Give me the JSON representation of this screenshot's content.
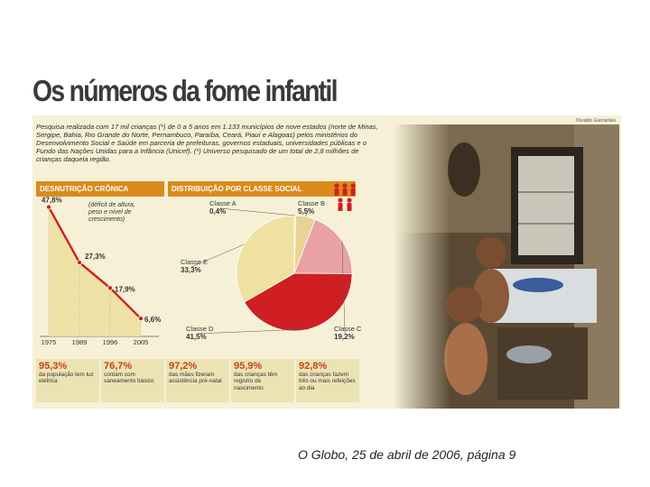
{
  "headline": "Os números da fome infantil",
  "credit": "Osvaldo Guimarães",
  "intro": "Pesquisa realizada com 17 mil crianças (*) de 0 a 5 anos em 1.133 municípios de nove estados (norte de Minas, Sergipe, Bahia, Rio Grande do Norte, Pernambuco, Paraíba, Ceará, Piauí e Alagoas) pelos ministérios do Desenvolvimento Social e Saúde em parceria de prefeituras, governos estaduais, universidades públicas e o Fundo das Nações Unidas para a Infância (Unicef). (*) Universo pesquisado de um total de 2,8 milhões de crianças daquela região.",
  "colors": {
    "orange": "#d98b1b",
    "red": "#cf1f22",
    "pink": "#e8a2a4",
    "cream": "#f0e1a0",
    "background": "#f6f1d6"
  },
  "chart_data": [
    {
      "type": "line",
      "title": "DESNUTRIÇÃO CRÔNICA",
      "annotation": "(déficit de altura, peso e nível de crescimento)",
      "x": [
        "1975",
        "1989",
        "1996",
        "2005"
      ],
      "y": [
        47.8,
        27.3,
        17.9,
        6.6
      ],
      "data_labels": [
        "47,8%",
        "27,3%",
        "17,9%",
        "6,6%"
      ],
      "ylim": [
        0,
        50
      ]
    },
    {
      "type": "pie",
      "title": "DISTRIBUIÇÃO POR CLASSE SOCIAL",
      "slices": [
        {
          "name": "Classe A",
          "label": "0,4%",
          "value": 0.4,
          "color": "#f0e1a0"
        },
        {
          "name": "Classe B",
          "label": "5,5%",
          "value": 5.5,
          "color": "#e8d394"
        },
        {
          "name": "Classe C",
          "label": "19,2%",
          "value": 19.2,
          "color": "#e8a2a4"
        },
        {
          "name": "Classe D",
          "label": "41,5%",
          "value": 41.5,
          "color": "#cf1f22"
        },
        {
          "name": "Classe E",
          "label": "33,3%",
          "value": 33.3,
          "color": "#f0e1a0"
        }
      ]
    }
  ],
  "stats": [
    {
      "value": "95,3%",
      "text": "da população tem luz elétrica"
    },
    {
      "value": "76,7%",
      "text": "contam com saneamento básico"
    },
    {
      "value": "97,2%",
      "text": "das mães fizeram assistência pré-natal"
    },
    {
      "value": "95,9%",
      "text": "das crianças têm registro de nascimento"
    },
    {
      "value": "92,8%",
      "text": "das crianças fazem três ou mais refeições ao dia"
    }
  ],
  "caption": "O Globo, 25 de abril de 2006, página 9"
}
